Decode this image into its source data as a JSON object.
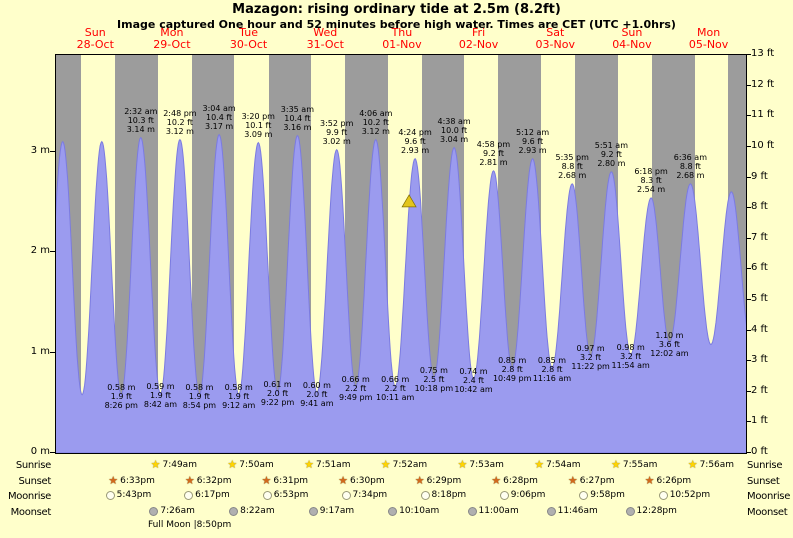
{
  "colors": {
    "background": "#FFFFCB",
    "night_band": "#9C9C9C",
    "tide_fill": "#9B9BEF",
    "tide_stroke": "#7B7BE0",
    "date_text": "#FF0000",
    "marker_fill": "#E2C51B",
    "marker_stroke": "#806F00",
    "sunrise_star": "#FFD400",
    "sunset_star": "#D2691E",
    "moonrise_fill": "#FFFFF0",
    "moonrise_stroke": "#999977",
    "moonset_fill": "#B0B0B0",
    "moonset_stroke": "#888888"
  },
  "chart_data": {
    "type": "area",
    "title": "Mazagon: rising ordinary tide at 2.5m (8.2ft)",
    "subtitle": "Image captured One hour and 52 minutes before high water. Times are CET (UTC +1.0hrs)",
    "days": [
      {
        "name": "Sun",
        "date": "28-Oct"
      },
      {
        "name": "Mon",
        "date": "29-Oct"
      },
      {
        "name": "Tue",
        "date": "30-Oct"
      },
      {
        "name": "Wed",
        "date": "31-Oct"
      },
      {
        "name": "Thu",
        "date": "01-Nov"
      },
      {
        "name": "Fri",
        "date": "02-Nov"
      },
      {
        "name": "Sat",
        "date": "03-Nov"
      },
      {
        "name": "Sun",
        "date": "04-Nov"
      },
      {
        "name": "Mon",
        "date": "05-Nov"
      }
    ],
    "y_left_ticks": [
      "0 m",
      "1 m",
      "2 m",
      "3 m"
    ],
    "y_left_values": [
      0,
      1,
      2,
      3
    ],
    "y_right_ticks": [
      "0 ft",
      "1 ft",
      "2 ft",
      "3 ft",
      "4 ft",
      "5 ft",
      "6 ft",
      "7 ft",
      "8 ft",
      "9 ft",
      "10 ft",
      "11 ft",
      "12 ft",
      "13 ft"
    ],
    "y_right_values": [
      0,
      1,
      2,
      3,
      4,
      5,
      6,
      7,
      8,
      9,
      10,
      11,
      12,
      13
    ],
    "tide_extremes": [
      {
        "day": -1,
        "time": "7:55 pm",
        "m": 0.55,
        "type": "low",
        "labeled": false
      },
      {
        "day": 0,
        "time": "2:06 am",
        "m": 3.1,
        "type": "high",
        "labeled": false
      },
      {
        "day": 0,
        "time": "8:10 am",
        "m": 0.58,
        "type": "low",
        "labeled": false
      },
      {
        "day": 0,
        "time": "2:20 pm",
        "m": 3.1,
        "type": "high",
        "labeled": false
      },
      {
        "day": 0,
        "time": "8:26 pm",
        "m": 0.58,
        "m_str": "0.58",
        "ft_str": "1.9",
        "type": "low",
        "labeled": true
      },
      {
        "day": 1,
        "time": "2:32 am",
        "m": 3.14,
        "m_str": "3.14",
        "ft_str": "10.3",
        "type": "high",
        "labeled": true
      },
      {
        "day": 1,
        "time": "8:42 am",
        "m": 0.59,
        "m_str": "0.59",
        "ft_str": "1.9",
        "type": "low",
        "labeled": true
      },
      {
        "day": 1,
        "time": "2:48 pm",
        "m": 3.12,
        "m_str": "3.12",
        "ft_str": "10.2",
        "type": "high",
        "labeled": true
      },
      {
        "day": 1,
        "time": "8:54 pm",
        "m": 0.58,
        "m_str": "0.58",
        "ft_str": "1.9",
        "type": "low",
        "labeled": true
      },
      {
        "day": 2,
        "time": "3:04 am",
        "m": 3.17,
        "m_str": "3.17",
        "ft_str": "10.4",
        "type": "high",
        "labeled": true
      },
      {
        "day": 2,
        "time": "9:12 am",
        "m": 0.58,
        "m_str": "0.58",
        "ft_str": "1.9",
        "type": "low",
        "labeled": true
      },
      {
        "day": 2,
        "time": "3:20 pm",
        "m": 3.09,
        "m_str": "3.09",
        "ft_str": "10.1",
        "type": "high",
        "labeled": true
      },
      {
        "day": 2,
        "time": "9:22 pm",
        "m": 0.61,
        "m_str": "0.61",
        "ft_str": "2.0",
        "type": "low",
        "labeled": true
      },
      {
        "day": 3,
        "time": "3:35 am",
        "m": 3.16,
        "m_str": "3.16",
        "ft_str": "10.4",
        "type": "high",
        "labeled": true
      },
      {
        "day": 3,
        "time": "9:41 am",
        "m": 0.6,
        "m_str": "0.60",
        "ft_str": "2.0",
        "type": "low",
        "labeled": true
      },
      {
        "day": 3,
        "time": "3:52 pm",
        "m": 3.02,
        "m_str": "3.02",
        "ft_str": "9.9",
        "type": "high",
        "labeled": true
      },
      {
        "day": 3,
        "time": "9:49 pm",
        "m": 0.66,
        "m_str": "0.66",
        "ft_str": "2.2",
        "type": "low",
        "labeled": true
      },
      {
        "day": 4,
        "time": "4:06 am",
        "m": 3.12,
        "m_str": "3.12",
        "ft_str": "10.2",
        "type": "high",
        "labeled": true
      },
      {
        "day": 4,
        "time": "10:11 am",
        "m": 0.66,
        "m_str": "0.66",
        "ft_str": "2.2",
        "type": "low",
        "labeled": true
      },
      {
        "day": 4,
        "time": "4:24 pm",
        "m": 2.93,
        "m_str": "2.93",
        "ft_str": "9.6",
        "type": "high",
        "labeled": true
      },
      {
        "day": 4,
        "time": "10:18 pm",
        "m": 0.75,
        "m_str": "0.75",
        "ft_str": "2.5",
        "type": "low",
        "labeled": true
      },
      {
        "day": 5,
        "time": "4:38 am",
        "m": 3.04,
        "m_str": "3.04",
        "ft_str": "10.0",
        "type": "high",
        "labeled": true
      },
      {
        "day": 5,
        "time": "10:42 am",
        "m": 0.74,
        "m_str": "0.74",
        "ft_str": "2.4",
        "type": "low",
        "labeled": true
      },
      {
        "day": 5,
        "time": "4:58 pm",
        "m": 2.81,
        "m_str": "2.81",
        "ft_str": "9.2",
        "type": "high",
        "labeled": true
      },
      {
        "day": 5,
        "time": "10:49 pm",
        "m": 0.85,
        "m_str": "0.85",
        "ft_str": "2.8",
        "type": "low",
        "labeled": true
      },
      {
        "day": 6,
        "time": "5:12 am",
        "m": 2.93,
        "m_str": "2.93",
        "ft_str": "9.6",
        "type": "high",
        "labeled": true
      },
      {
        "day": 6,
        "time": "11:16 am",
        "m": 0.85,
        "m_str": "0.85",
        "ft_str": "2.8",
        "type": "low",
        "labeled": true
      },
      {
        "day": 6,
        "time": "5:35 pm",
        "m": 2.68,
        "m_str": "2.68",
        "ft_str": "8.8",
        "type": "high",
        "labeled": true
      },
      {
        "day": 6,
        "time": "11:22 pm",
        "m": 0.97,
        "m_str": "0.97",
        "ft_str": "3.2",
        "type": "low",
        "labeled": true
      },
      {
        "day": 7,
        "time": "5:51 am",
        "m": 2.8,
        "m_str": "2.80",
        "ft_str": "9.2",
        "type": "high",
        "labeled": true
      },
      {
        "day": 7,
        "time": "11:54 am",
        "m": 0.98,
        "m_str": "0.98",
        "ft_str": "3.2",
        "type": "low",
        "labeled": true
      },
      {
        "day": 7,
        "time": "6:18 pm",
        "m": 2.54,
        "m_str": "2.54",
        "ft_str": "8.3",
        "type": "high",
        "labeled": true
      },
      {
        "day": 8,
        "time": "12:02 am",
        "m": 1.1,
        "m_str": "1.10",
        "ft_str": "3.6",
        "type": "low",
        "labeled": true
      },
      {
        "day": 8,
        "time": "6:36 am",
        "m": 2.68,
        "m_str": "2.68",
        "ft_str": "8.8",
        "type": "high",
        "labeled": true
      },
      {
        "day": 8,
        "time": "1:00 pm",
        "m": 1.08,
        "type": "low",
        "labeled": false
      },
      {
        "day": 8,
        "time": "7:25 pm",
        "m": 2.6,
        "type": "high",
        "labeled": false
      },
      {
        "day": 9,
        "time": "1:30 am",
        "m": 1.1,
        "type": "low",
        "labeled": false
      }
    ],
    "current_marker": {
      "day": 4,
      "time": "2:32 pm",
      "level_m": 2.5
    },
    "layout_hints": {
      "hours_total": 216,
      "first_sunrise_hour": 7.8,
      "last_sunset_hour": 210.42,
      "grid": false,
      "night_day_bands": true,
      "legend": "none"
    }
  },
  "astro": {
    "sunrise": {
      "label": "Sunrise",
      "events": [
        {
          "day": 1,
          "time": "7:49am"
        },
        {
          "day": 2,
          "time": "7:50am"
        },
        {
          "day": 3,
          "time": "7:51am"
        },
        {
          "day": 4,
          "time": "7:52am"
        },
        {
          "day": 5,
          "time": "7:53am"
        },
        {
          "day": 6,
          "time": "7:54am"
        },
        {
          "day": 7,
          "time": "7:55am"
        },
        {
          "day": 8,
          "time": "7:56am"
        }
      ]
    },
    "sunset": {
      "label": "Sunset",
      "events": [
        {
          "day": 0,
          "time": "6:33pm"
        },
        {
          "day": 1,
          "time": "6:32pm"
        },
        {
          "day": 2,
          "time": "6:31pm"
        },
        {
          "day": 3,
          "time": "6:30pm"
        },
        {
          "day": 4,
          "time": "6:29pm"
        },
        {
          "day": 5,
          "time": "6:28pm"
        },
        {
          "day": 6,
          "time": "6:27pm"
        },
        {
          "day": 7,
          "time": "6:26pm"
        }
      ]
    },
    "moonrise": {
      "label": "Moonrise",
      "events": [
        {
          "day": 0,
          "time": "5:43pm"
        },
        {
          "day": 1,
          "time": "6:17pm"
        },
        {
          "day": 2,
          "time": "6:53pm"
        },
        {
          "day": 3,
          "time": "7:34pm"
        },
        {
          "day": 4,
          "time": "8:18pm"
        },
        {
          "day": 5,
          "time": "9:06pm"
        },
        {
          "day": 6,
          "time": "9:58pm"
        },
        {
          "day": 7,
          "time": "10:52pm"
        }
      ]
    },
    "moonset": {
      "label": "Moonset",
      "events": [
        {
          "day": 1,
          "time": "7:26am"
        },
        {
          "day": 2,
          "time": "8:22am"
        },
        {
          "day": 3,
          "time": "9:17am"
        },
        {
          "day": 4,
          "time": "10:10am"
        },
        {
          "day": 5,
          "time": "11:00am"
        },
        {
          "day": 6,
          "time": "11:46am"
        },
        {
          "day": 7,
          "time": "12:28pm"
        }
      ]
    },
    "full_moon": {
      "label": "Full Moon",
      "time": "8:50pm"
    }
  }
}
